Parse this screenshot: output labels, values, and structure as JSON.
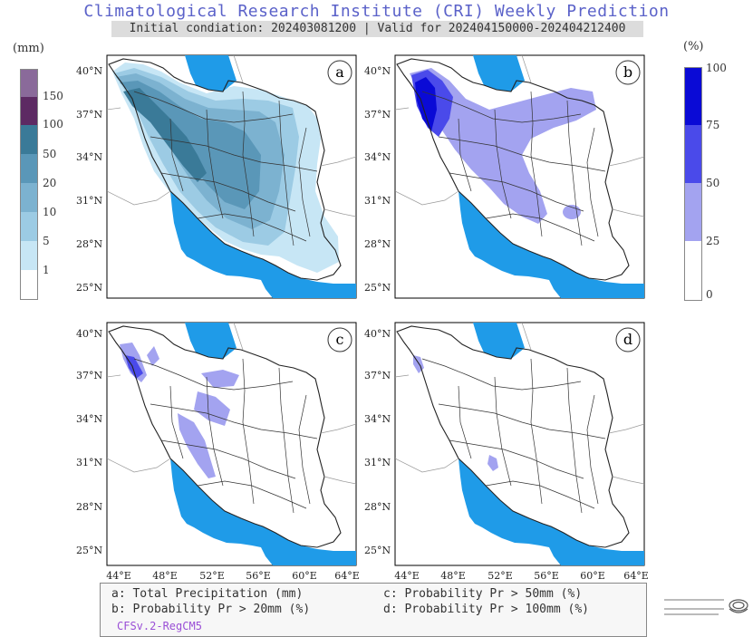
{
  "header": {
    "title": "Climatological Research Institute (CRI) Weekly Prediction",
    "subtitle": "Initial condiation: 202403081200 | Valid for 202404150000-202404212400"
  },
  "left_colorbar": {
    "unit": "(mm)",
    "labels": [
      "150",
      "100",
      "50",
      "20",
      "10",
      "5",
      "1"
    ],
    "colors": [
      "#8a6a9a",
      "#5d2a63",
      "#3a7a98",
      "#5a97b8",
      "#7cb2d0",
      "#9ccbe4",
      "#c7e6f5",
      "#ffffff"
    ]
  },
  "right_colorbar": {
    "unit": "(%)",
    "labels": [
      "100",
      "75",
      "50",
      "25",
      "0"
    ],
    "colors": [
      "#0a0ad6",
      "#4a4aea",
      "#a3a3f0",
      "#ffffff"
    ]
  },
  "panels": [
    {
      "letter": "a",
      "lat_labels": [
        "40°N",
        "37°N",
        "34°N",
        "31°N",
        "28°N",
        "25°N"
      ],
      "lon_labels": []
    },
    {
      "letter": "b",
      "lat_labels": [
        "40°N",
        "37°N",
        "34°N",
        "31°N",
        "28°N",
        "25°N"
      ],
      "lon_labels": []
    },
    {
      "letter": "c",
      "lat_labels": [
        "40°N",
        "37°N",
        "34°N",
        "31°N",
        "28°N",
        "25°N"
      ],
      "lon_labels": [
        "44°E",
        "48°E",
        "52°E",
        "56°E",
        "60°E",
        "64°E"
      ]
    },
    {
      "letter": "d",
      "lat_labels": [
        "40°N",
        "37°N",
        "34°N",
        "31°N",
        "28°N",
        "25°N"
      ],
      "lon_labels": [
        "44°E",
        "48°E",
        "52°E",
        "56°E",
        "60°E",
        "64°E"
      ]
    }
  ],
  "legend": {
    "a": "a: Total Precipitation (mm)",
    "b": "b: Probability Pr > 20mm (%)",
    "c": "c: Probability Pr > 50mm (%)",
    "d": "d: Probability Pr > 100mm (%)",
    "model": "CFSv.2-RegCM5"
  },
  "colors": {
    "water": "#1f9be8",
    "title": "#5b62c9",
    "model": "#9a4fd6",
    "border": "#222222"
  }
}
